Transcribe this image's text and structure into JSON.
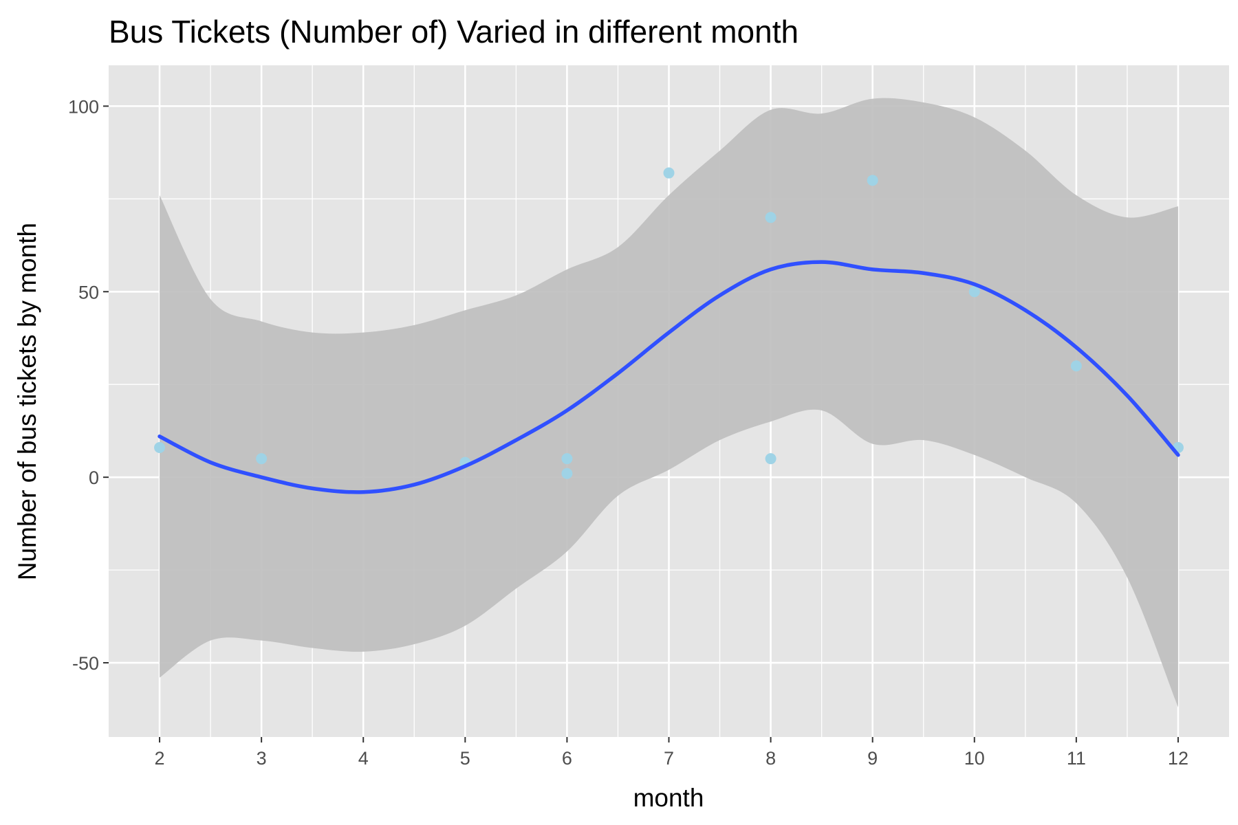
{
  "chart_data": {
    "type": "scatter",
    "title": "Bus Tickets (Number of) Varied in different month",
    "xlabel": "month",
    "ylabel": "Number of bus tickets by month",
    "xlim": [
      1.5,
      12.5
    ],
    "ylim": [
      -70,
      111
    ],
    "x_ticks": [
      2,
      3,
      4,
      5,
      6,
      7,
      8,
      9,
      10,
      11,
      12
    ],
    "y_ticks": [
      -50,
      0,
      50,
      100
    ],
    "y_tick_labels": [
      "-50",
      "0",
      "50",
      "100"
    ],
    "grid": true,
    "legend": "none",
    "colors": {
      "panel": "#e5e5e5",
      "grid": "#ffffff",
      "points": "#9fd3e6",
      "smooth": "#3050ff",
      "ribbon": "#bebebe"
    },
    "points": [
      {
        "x": 2,
        "y": 8
      },
      {
        "x": 3,
        "y": 5
      },
      {
        "x": 5,
        "y": 4
      },
      {
        "x": 6,
        "y": 5
      },
      {
        "x": 6,
        "y": 1
      },
      {
        "x": 7,
        "y": 82
      },
      {
        "x": 8,
        "y": 70
      },
      {
        "x": 8,
        "y": 5
      },
      {
        "x": 9,
        "y": 80
      },
      {
        "x": 10,
        "y": 50
      },
      {
        "x": 11,
        "y": 30
      },
      {
        "x": 12,
        "y": 8
      }
    ],
    "smooth": {
      "method": "loess",
      "x": [
        2,
        2.5,
        3,
        3.5,
        4,
        4.5,
        5,
        5.5,
        6,
        6.5,
        7,
        7.5,
        8,
        8.5,
        9,
        9.5,
        10,
        10.5,
        11,
        11.5,
        12
      ],
      "y": [
        11,
        4,
        0,
        -3,
        -4,
        -2,
        3,
        10,
        18,
        28,
        39,
        49,
        56,
        58,
        56,
        55,
        52,
        45,
        35,
        22,
        6
      ],
      "lower": [
        -54,
        -44,
        -44,
        -46,
        -47,
        -45,
        -40,
        -30,
        -20,
        -5,
        2,
        10,
        15,
        18,
        9,
        10,
        6,
        0,
        -7,
        -27,
        -62
      ],
      "upper": [
        76,
        48,
        42,
        39,
        39,
        41,
        45,
        49,
        56,
        62,
        76,
        88,
        99,
        98,
        102,
        101,
        97,
        88,
        76,
        70,
        73
      ]
    }
  }
}
